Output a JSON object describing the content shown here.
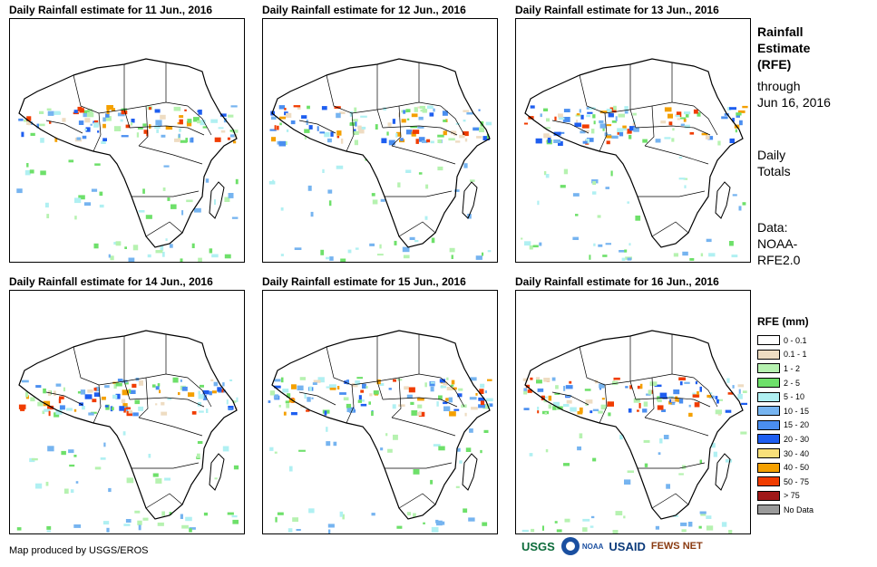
{
  "panels": [
    {
      "title": "Daily Rainfall estimate for 11 Jun., 2016"
    },
    {
      "title": "Daily Rainfall estimate for 12 Jun., 2016"
    },
    {
      "title": "Daily Rainfall estimate for 13 Jun., 2016"
    },
    {
      "title": "Daily Rainfall estimate for 14 Jun., 2016"
    },
    {
      "title": "Daily Rainfall estimate for 15 Jun., 2016"
    },
    {
      "title": "Daily Rainfall estimate for 16 Jun., 2016"
    }
  ],
  "side": {
    "heading_1": "Rainfall",
    "heading_2": "Estimate",
    "heading_3": "(RFE)",
    "through_1": "through",
    "through_2": "Jun 16, 2016",
    "daily_1": "Daily",
    "daily_2": "Totals",
    "data_1": "Data:",
    "data_2": "NOAA-",
    "data_3": "RFE2.0"
  },
  "legend": {
    "title": "RFE (mm)",
    "items": [
      {
        "label": "0 - 0.1",
        "color": "#ffffff"
      },
      {
        "label": "0.1 - 1",
        "color": "#eedcc2"
      },
      {
        "label": "1 - 2",
        "color": "#b6f2b0"
      },
      {
        "label": "2 - 5",
        "color": "#6ee06a"
      },
      {
        "label": "5 - 10",
        "color": "#b0f0f2"
      },
      {
        "label": "10 - 15",
        "color": "#76b4f0"
      },
      {
        "label": "15 - 20",
        "color": "#4a8ef0"
      },
      {
        "label": "20 - 30",
        "color": "#1e5ef0"
      },
      {
        "label": "30 - 40",
        "color": "#f8e07a"
      },
      {
        "label": "40 - 50",
        "color": "#f4a000"
      },
      {
        "label": "50 - 75",
        "color": "#f03c00"
      },
      {
        "label": "> 75",
        "color": "#a01818"
      },
      {
        "label": "No Data",
        "color": "#9a9a9a"
      }
    ]
  },
  "footer": {
    "credit": "Map produced by USGS/EROS"
  },
  "logos": {
    "usgs": "USGS",
    "noaa": "NOAA",
    "usaid": "USAID",
    "fewsnet": "FEWS NET"
  }
}
